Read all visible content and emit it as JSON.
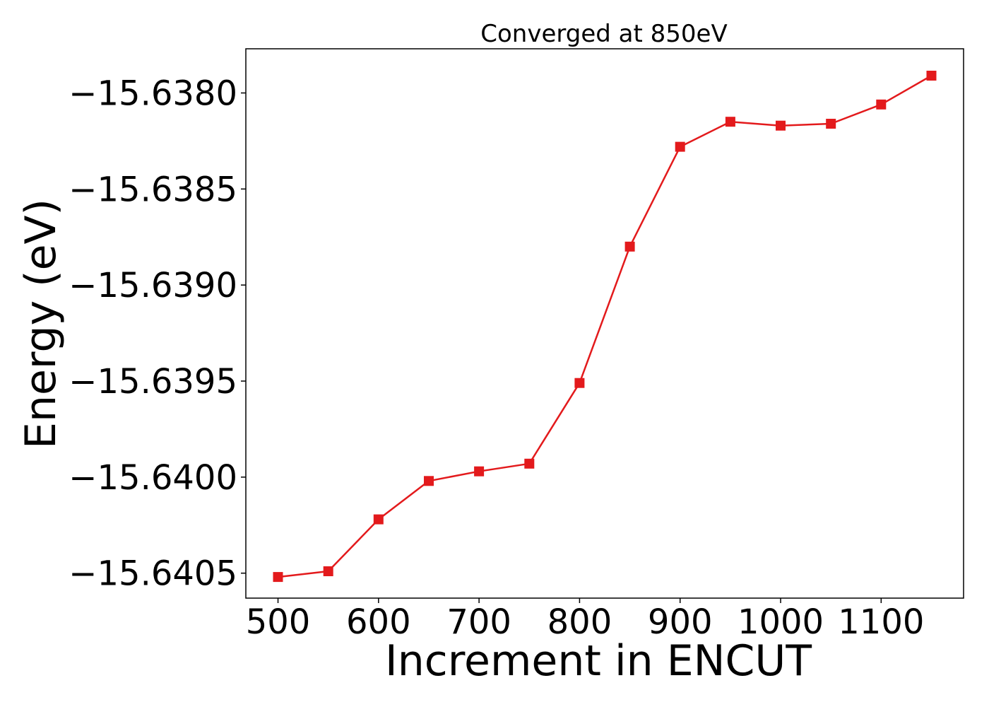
{
  "chart_data": {
    "type": "line",
    "title": "Converged at 850eV",
    "xlabel": "Increment in ENCUT",
    "ylabel": "Energy (eV)",
    "x": [
      500,
      550,
      600,
      650,
      700,
      750,
      800,
      850,
      900,
      950,
      1000,
      1050,
      1100,
      1150
    ],
    "series": [
      {
        "values": [
          -15.64052,
          -15.64049,
          -15.64022,
          -15.64002,
          -15.63997,
          -15.63993,
          -15.63951,
          -15.6388,
          -15.63828,
          -15.63815,
          -15.63817,
          -15.63816,
          -15.63806,
          -15.63791
        ],
        "color": "#e31a1c",
        "marker": "square"
      }
    ],
    "xlim": [
      468,
      1182
    ],
    "ylim": [
      -15.64063,
      -15.63777
    ],
    "xticks": [
      500,
      600,
      700,
      800,
      900,
      1000,
      1100
    ],
    "xtick_labels": [
      "500",
      "600",
      "700",
      "800",
      "900",
      "1000",
      "1100"
    ],
    "yticks": [
      -15.638,
      -15.6385,
      -15.639,
      -15.6395,
      -15.64,
      -15.6405
    ],
    "ytick_labels": [
      "−15.6380",
      "−15.6385",
      "−15.6390",
      "−15.6395",
      "−15.6400",
      "−15.6405"
    ],
    "grid": false,
    "legend": false
  }
}
